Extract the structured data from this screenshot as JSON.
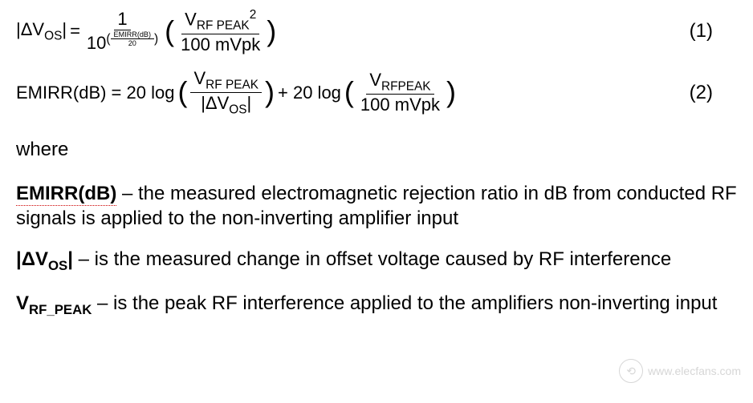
{
  "equations": {
    "eq1_label": "(1)",
    "eq2_label": "(2)",
    "abs_delta_vos": "|ΔV",
    "vos_sub": "OS",
    "abs_close": "|",
    "equals": " = ",
    "one": "1",
    "ten": "10",
    "emirr_db_text": "EMIRR(dB)",
    "over_20": "20",
    "vrf_peak": "V",
    "rf_peak_sub": "RF PEAK",
    "sq": "2",
    "hundred_mvpk": "100 mVpk",
    "emirr_eq": "EMIRR(dB) = 20 log",
    "plus_20log": " + 20 log",
    "rfpeak_sub2": "RFPEAK"
  },
  "where": {
    "label": "where",
    "emirr_term": "EMIRR(dB)",
    "emirr_def": " – the measured electromagnetic rejection ratio in dB from conducted RF signals is applied to the non-inverting amplifier input",
    "dvos_term_pre": "|ΔV",
    "dvos_sub": "OS",
    "dvos_term_post": "|",
    "dvos_def": " – is the measured change in offset voltage caused by RF interference",
    "vrf_term_pre": "V",
    "vrf_sub": "RF_PEAK",
    "vrf_def": " – is the peak RF interference applied to the amplifiers non-inverting input"
  },
  "watermark": {
    "url": "www.elecfans.com",
    "icon_glyph": "⟲"
  },
  "styles": {
    "bg": "#ffffff",
    "text": "#000000",
    "dotted_underline": "#c00",
    "body_fontsize": 24,
    "eq_fontsize": 22
  }
}
